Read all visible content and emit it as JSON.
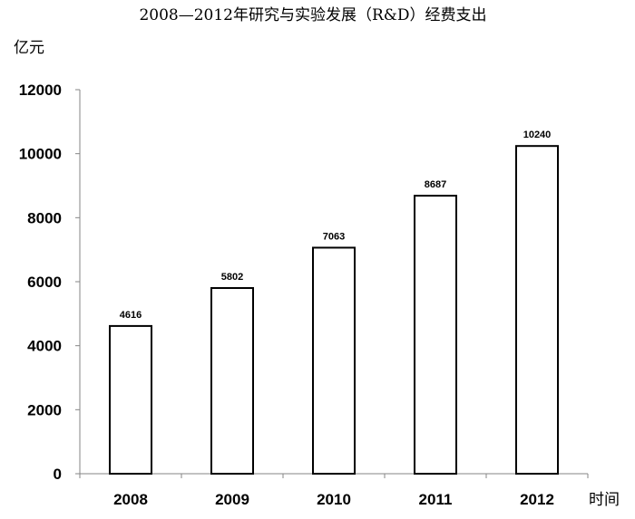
{
  "chart_data": {
    "type": "bar",
    "title": "2008—2012年研究与实验发展（R&D）经费支出",
    "xlabel": "时间",
    "ylabel": "亿元",
    "categories": [
      "2008",
      "2009",
      "2010",
      "2011",
      "2012"
    ],
    "values": [
      4616,
      5802,
      7063,
      8687,
      10240
    ],
    "data_labels": [
      "4616",
      "5802",
      "7063",
      "8687",
      "10240"
    ],
    "yticks": [
      "0",
      "2000",
      "4000",
      "6000",
      "8000",
      "10000",
      "12000"
    ],
    "ylim": [
      0,
      12000
    ],
    "grid": false,
    "legend": "none",
    "colors": {
      "bar_fill": "#ffffff",
      "bar_stroke": "#000000",
      "axis": "#868686",
      "text": "#000000"
    }
  }
}
